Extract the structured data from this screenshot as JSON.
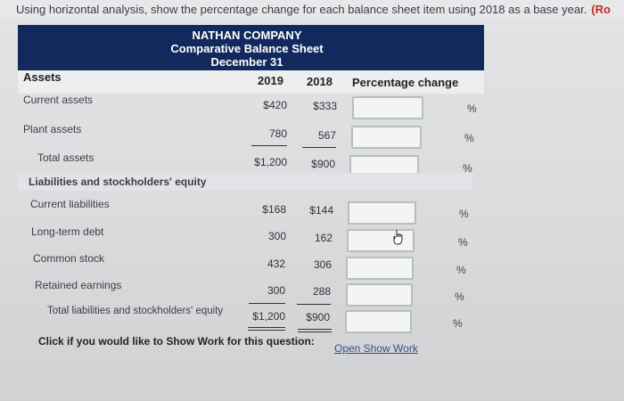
{
  "instruction": {
    "text": "Using horizontal analysis, show the percentage change for each balance sheet item using 2018 as a base year.",
    "ref": "(Ro"
  },
  "header": {
    "company": "NATHAN COMPANY",
    "statement": "Comparative Balance Sheet",
    "date": "December 31"
  },
  "columns": {
    "assets": "Assets",
    "y2019": "2019",
    "y2018": "2018",
    "pct": "Percentage change"
  },
  "rows": [
    {
      "label": "Current assets",
      "v2019": "$420",
      "v2018": "$333",
      "pct_value": "",
      "pct_sign": "%"
    },
    {
      "label": "Plant assets",
      "v2019": "780",
      "v2018": "567",
      "pct_value": "",
      "pct_sign": "%"
    },
    {
      "label": "Total assets",
      "v2019": "$1,200",
      "v2018": "$900",
      "pct_value": "",
      "pct_sign": "%"
    },
    {
      "label": "Current liabilities",
      "v2019": "$168",
      "v2018": "$144",
      "pct_value": "",
      "pct_sign": "%"
    },
    {
      "label": "Long-term debt",
      "v2019": "300",
      "v2018": "162",
      "pct_value": "",
      "pct_sign": "%"
    },
    {
      "label": "Common stock",
      "v2019": "432",
      "v2018": "306",
      "pct_value": "",
      "pct_sign": "%"
    },
    {
      "label": "Retained earnings",
      "v2019": "300",
      "v2018": "288",
      "pct_value": "",
      "pct_sign": "%"
    },
    {
      "label": "Total liabilities and stockholders' equity",
      "v2019": "$1,200",
      "v2018": "$900",
      "pct_value": "",
      "pct_sign": "%"
    }
  ],
  "section": {
    "liabilities": "Liabilities and stockholders' equity"
  },
  "footer": {
    "prompt": "Click if you would like to Show Work for this question:",
    "link": "Open Show Work"
  }
}
